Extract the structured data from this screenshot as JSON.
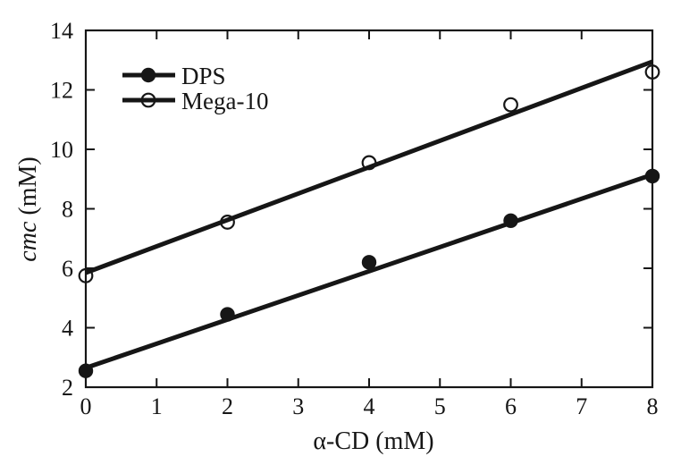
{
  "figure": {
    "background": "#ffffff",
    "ink_color": "#161616"
  },
  "axes": {
    "xlabel": "α-CD (mM)",
    "ylabel": "cmc (mM)",
    "ylabel_parts": {
      "italic": "cmc",
      "regular": " (mM)"
    }
  },
  "chart_data": {
    "type": "scatter",
    "title": "",
    "xlabel": "α-CD (mM)",
    "ylabel": "cmc (mM)",
    "xlim": [
      0,
      8
    ],
    "ylim": [
      2,
      14
    ],
    "x_ticks": [
      0,
      1,
      2,
      3,
      4,
      5,
      6,
      7,
      8
    ],
    "y_ticks": [
      2,
      4,
      6,
      8,
      10,
      12,
      14
    ],
    "grid": false,
    "legend_position": "upper-left",
    "x": [
      0,
      2,
      4,
      6,
      8
    ],
    "series": [
      {
        "name": "DPS",
        "marker": "filled-circle",
        "color": "#161616",
        "values": [
          2.55,
          4.45,
          6.2,
          7.6,
          9.1
        ],
        "fit_line": {
          "x": [
            0,
            8
          ],
          "y": [
            2.65,
            9.15
          ]
        }
      },
      {
        "name": "Mega-10",
        "marker": "open-circle",
        "color": "#161616",
        "values": [
          5.75,
          7.55,
          9.55,
          11.5,
          12.6
        ],
        "fit_line": {
          "x": [
            0,
            8
          ],
          "y": [
            5.85,
            12.95
          ]
        }
      }
    ]
  }
}
